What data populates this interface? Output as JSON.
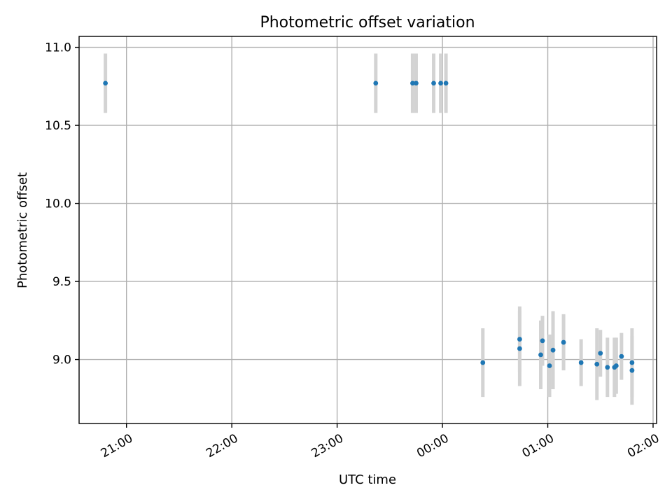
{
  "chart_data": {
    "type": "scatter",
    "title": "Photometric offset variation",
    "xlabel": "UTC time",
    "ylabel": "Photometric offset",
    "x_unit": "UTC time (HH:MM)",
    "xlim": [
      "20:33",
      "02:02"
    ],
    "ylim": [
      8.59,
      11.07
    ],
    "xticks": [
      "21:00",
      "22:00",
      "23:00",
      "00:00",
      "01:00",
      "02:00"
    ],
    "yticks": [
      "9.0",
      "9.5",
      "10.0",
      "10.5",
      "11.0"
    ],
    "grid": true,
    "point_color": "#1f77b4",
    "errorbar_color": "#d3d3d3",
    "points": [
      {
        "x": "20:48",
        "y": 10.77,
        "err": 0.19
      },
      {
        "x": "23:22",
        "y": 10.77,
        "err": 0.19
      },
      {
        "x": "23:43",
        "y": 10.77,
        "err": 0.19
      },
      {
        "x": "23:45",
        "y": 10.77,
        "err": 0.19
      },
      {
        "x": "23:55",
        "y": 10.77,
        "err": 0.19
      },
      {
        "x": "23:59",
        "y": 10.77,
        "err": 0.19
      },
      {
        "x": "00:02",
        "y": 10.77,
        "err": 0.19
      },
      {
        "x": "00:23",
        "y": 8.98,
        "err": 0.22
      },
      {
        "x": "00:44",
        "y": 9.13,
        "err": 0.21
      },
      {
        "x": "00:44",
        "y": 9.07,
        "err": 0.24
      },
      {
        "x": "00:56",
        "y": 9.03,
        "err": 0.22
      },
      {
        "x": "00:57",
        "y": 9.12,
        "err": 0.16
      },
      {
        "x": "01:01",
        "y": 8.96,
        "err": 0.2
      },
      {
        "x": "01:03",
        "y": 9.06,
        "err": 0.25
      },
      {
        "x": "01:09",
        "y": 9.11,
        "err": 0.18
      },
      {
        "x": "01:19",
        "y": 8.98,
        "err": 0.15
      },
      {
        "x": "01:28",
        "y": 8.97,
        "err": 0.23
      },
      {
        "x": "01:30",
        "y": 9.04,
        "err": 0.15
      },
      {
        "x": "01:34",
        "y": 8.95,
        "err": 0.19
      },
      {
        "x": "01:38",
        "y": 8.95,
        "err": 0.19
      },
      {
        "x": "01:39",
        "y": 8.96,
        "err": 0.18
      },
      {
        "x": "01:42",
        "y": 9.02,
        "err": 0.15
      },
      {
        "x": "01:48",
        "y": 8.93,
        "err": 0.22
      },
      {
        "x": "01:48",
        "y": 8.98,
        "err": 0.22
      }
    ]
  }
}
